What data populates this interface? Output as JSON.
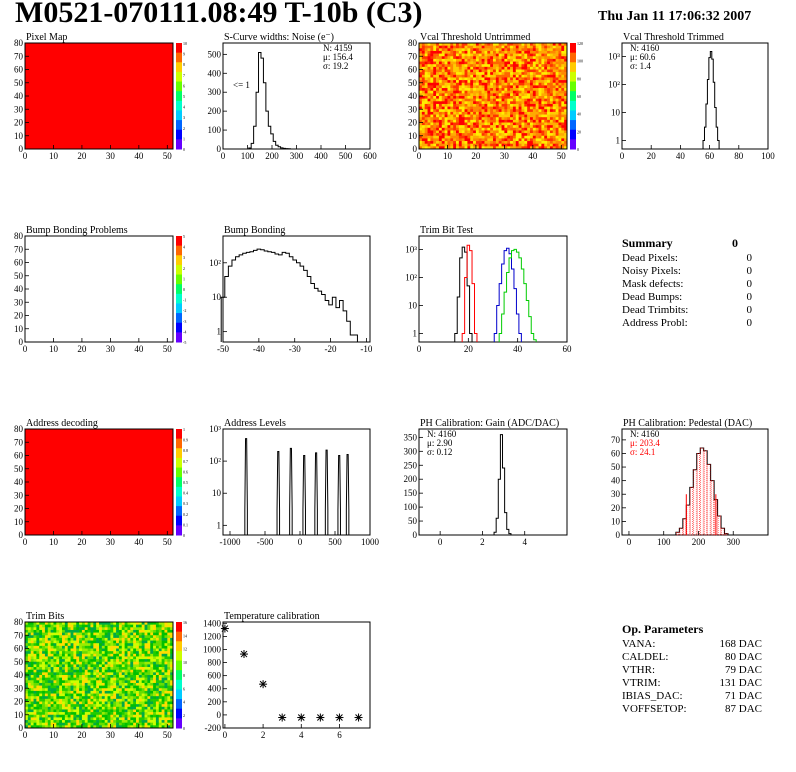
{
  "header": {
    "title": "M0521-070111.08:49 T-10b (C3)",
    "date": "Thu Jan 11 17:06:32 2007"
  },
  "colors": {
    "red": "#ff0000",
    "black": "#000000",
    "blue": "#0000cc",
    "green": "#00cc00",
    "stats_red": "#ff0000"
  },
  "summary": {
    "title": "Summary",
    "total": "0",
    "rows": [
      {
        "label": "Dead Pixels:",
        "value": "0"
      },
      {
        "label": "Noisy Pixels:",
        "value": "0"
      },
      {
        "label": "Mask defects:",
        "value": "0"
      },
      {
        "label": "Dead Bumps:",
        "value": "0"
      },
      {
        "label": "Dead Trimbits:",
        "value": "0"
      },
      {
        "label": "Address Probl:",
        "value": "0"
      }
    ]
  },
  "op_params": {
    "title": "Op. Parameters",
    "rows": [
      {
        "label": "VANA:",
        "value": "168 DAC"
      },
      {
        "label": "CALDEL:",
        "value": "80 DAC"
      },
      {
        "label": "VTHR:",
        "value": "79 DAC"
      },
      {
        "label": "VTRIM:",
        "value": "131 DAC"
      },
      {
        "label": "IBIAS_DAC:",
        "value": "71 DAC"
      },
      {
        "label": "VOFFSETOP:",
        "value": "87 DAC"
      }
    ]
  },
  "chart_data": [
    {
      "id": "pixel-map",
      "type": "heatmap",
      "title": "Pixel Map",
      "x_ticks": [
        "0",
        "10",
        "20",
        "30",
        "40",
        "50"
      ],
      "y_ticks": [
        "0",
        "10",
        "20",
        "30",
        "40",
        "50",
        "60",
        "70",
        "80"
      ],
      "xlim": [
        0,
        52
      ],
      "ylim": [
        0,
        80
      ],
      "fill": "uniform-red",
      "value": 10,
      "colorbar_ticks": [
        "0",
        "1",
        "2",
        "3",
        "4",
        "5",
        "6",
        "7",
        "8",
        "9",
        "10"
      ]
    },
    {
      "id": "scurve-noise",
      "type": "line",
      "title": "S-Curve widths: Noise (e⁻)",
      "x_ticks": [
        "0",
        "100",
        "200",
        "300",
        "400",
        "500",
        "600"
      ],
      "y_ticks": [
        "0",
        "100",
        "200",
        "300",
        "400",
        "500"
      ],
      "xlim": [
        0,
        600
      ],
      "ylim": [
        0,
        560
      ],
      "log_y": false,
      "stats": [
        "N: 4159",
        "μ: 156.4",
        "σ: 19.2"
      ],
      "annotation": "<= 1",
      "series": [
        {
          "color": "black",
          "x": [
            100,
            110,
            120,
            130,
            140,
            150,
            160,
            170,
            180,
            190,
            200,
            210,
            220,
            230,
            240,
            250,
            260,
            270,
            280
          ],
          "y": [
            0,
            5,
            30,
            120,
            300,
            510,
            480,
            350,
            200,
            120,
            80,
            40,
            20,
            12,
            6,
            3,
            2,
            1,
            0
          ]
        }
      ]
    },
    {
      "id": "vcal-untrimmed",
      "type": "heatmap",
      "title": "Vcal Threshold Untrimmed",
      "x_ticks": [
        "0",
        "10",
        "20",
        "30",
        "40",
        "50"
      ],
      "y_ticks": [
        "0",
        "10",
        "20",
        "30",
        "40",
        "50",
        "60",
        "70",
        "80"
      ],
      "xlim": [
        0,
        52
      ],
      "ylim": [
        0,
        80
      ],
      "fill": "noisy-orange",
      "colorbar_ticks": [
        "0",
        "20",
        "40",
        "60",
        "80",
        "100",
        "120"
      ]
    },
    {
      "id": "vcal-trimmed",
      "type": "line",
      "title": "Vcal Threshold Trimmed",
      "x_ticks": [
        "0",
        "20",
        "40",
        "60",
        "80",
        "100"
      ],
      "y_ticks": [
        "1",
        "10",
        "10²",
        "10³"
      ],
      "xlim": [
        0,
        100
      ],
      "ylim": [
        0.5,
        3000
      ],
      "log_y": true,
      "stats": [
        "N: 4160",
        "μ:  60.6",
        "σ:  1.4"
      ],
      "series": [
        {
          "color": "black",
          "x": [
            56,
            57,
            58,
            59,
            60,
            61,
            62,
            63,
            64,
            65,
            66
          ],
          "y": [
            1,
            3,
            20,
            150,
            900,
            1500,
            800,
            120,
            15,
            3,
            1
          ]
        }
      ]
    },
    {
      "id": "bump-problems",
      "type": "heatmap",
      "title": "Bump Bonding Problems",
      "x_ticks": [
        "0",
        "10",
        "20",
        "30",
        "40",
        "50"
      ],
      "y_ticks": [
        "0",
        "10",
        "20",
        "30",
        "40",
        "50",
        "60",
        "70",
        "80"
      ],
      "xlim": [
        0,
        52
      ],
      "ylim": [
        0,
        80
      ],
      "fill": "empty",
      "colorbar_ticks": [
        "-5",
        "-4",
        "-3",
        "-2",
        "-1",
        "0",
        "1",
        "2",
        "3",
        "4",
        "5"
      ]
    },
    {
      "id": "bump-bonding",
      "type": "line",
      "title": "Bump Bonding",
      "x_ticks": [
        "-50",
        "-40",
        "-30",
        "-20",
        "-10"
      ],
      "y_ticks": [
        "1",
        "10",
        "10²"
      ],
      "xlim": [
        -50,
        -9
      ],
      "ylim": [
        0.5,
        600
      ],
      "log_y": true,
      "series": [
        {
          "color": "black",
          "x": [
            -50,
            -49,
            -48,
            -47,
            -46,
            -45,
            -44,
            -43,
            -42,
            -41,
            -40,
            -39,
            -38,
            -37,
            -36,
            -35,
            -34,
            -33,
            -32,
            -31,
            -30,
            -29,
            -28,
            -27,
            -26,
            -25,
            -24,
            -23,
            -22,
            -21,
            -20,
            -19,
            -18,
            -17,
            -16,
            -15,
            -14,
            -13
          ],
          "y": [
            10,
            40,
            80,
            120,
            150,
            170,
            190,
            200,
            210,
            230,
            250,
            240,
            220,
            210,
            200,
            180,
            170,
            200,
            190,
            150,
            120,
            100,
            80,
            60,
            40,
            25,
            18,
            15,
            12,
            8,
            6,
            10,
            5,
            8,
            4,
            2,
            0.8,
            0.8
          ]
        }
      ]
    },
    {
      "id": "trim-bit-test",
      "type": "line",
      "title": "Trim Bit Test",
      "x_ticks": [
        "0",
        "20",
        "40",
        "60"
      ],
      "y_ticks": [
        "1",
        "10",
        "10²",
        "10³"
      ],
      "xlim": [
        0,
        60
      ],
      "ylim": [
        0.5,
        3000
      ],
      "log_y": true,
      "series": [
        {
          "color": "black",
          "x": [
            15,
            16,
            17,
            18,
            19,
            20,
            21
          ],
          "y": [
            1,
            20,
            500,
            1200,
            800,
            50,
            1
          ]
        },
        {
          "color": "red",
          "x": [
            18,
            19,
            20,
            21,
            22,
            23
          ],
          "y": [
            1,
            100,
            1400,
            900,
            60,
            1
          ]
        },
        {
          "color": "blue",
          "x": [
            31,
            32,
            33,
            34,
            35,
            36,
            37,
            38,
            39,
            40,
            41
          ],
          "y": [
            1,
            10,
            60,
            300,
            900,
            1100,
            700,
            200,
            40,
            5,
            1
          ]
        },
        {
          "color": "green",
          "x": [
            33,
            34,
            35,
            36,
            37,
            38,
            39,
            40,
            41,
            42,
            43,
            44,
            45,
            46,
            47
          ],
          "y": [
            1,
            5,
            30,
            150,
            500,
            900,
            1000,
            800,
            500,
            200,
            60,
            15,
            4,
            1,
            0.6
          ]
        }
      ]
    },
    {
      "id": "address-decoding",
      "type": "heatmap",
      "title": "Address decoding",
      "x_ticks": [
        "0",
        "10",
        "20",
        "30",
        "40",
        "50"
      ],
      "y_ticks": [
        "0",
        "10",
        "20",
        "30",
        "40",
        "50",
        "60",
        "70",
        "80"
      ],
      "xlim": [
        0,
        52
      ],
      "ylim": [
        0,
        80
      ],
      "fill": "uniform-red",
      "value": 1,
      "colorbar_ticks": [
        "0",
        "0.1",
        "0.2",
        "0.3",
        "0.4",
        "0.5",
        "0.6",
        "0.7",
        "0.8",
        "0.9",
        "1"
      ]
    },
    {
      "id": "address-levels",
      "type": "line",
      "title": "Address Levels",
      "x_ticks": [
        "-1000",
        "-500",
        "0",
        "500",
        "1000"
      ],
      "y_ticks": [
        "1",
        "10",
        "10²",
        "10³"
      ],
      "xlim": [
        -1100,
        1000
      ],
      "ylim": [
        0.5,
        1000
      ],
      "log_y": true,
      "series": [
        {
          "color": "black",
          "peaks": [
            -770,
            -310,
            -130,
            60,
            230,
            380,
            560,
            680
          ],
          "heights": [
            500,
            200,
            250,
            150,
            180,
            220,
            150,
            160
          ]
        }
      ]
    },
    {
      "id": "ph-gain",
      "type": "line",
      "title": "PH Calibration: Gain (ADC/DAC)",
      "x_ticks": [
        "0",
        "2",
        "4"
      ],
      "y_ticks": [
        "0",
        "50",
        "100",
        "150",
        "200",
        "250",
        "300",
        "350"
      ],
      "xlim": [
        -1,
        6
      ],
      "ylim": [
        0,
        380
      ],
      "log_y": false,
      "stats": [
        "N: 4160",
        "μ:  2.90",
        "σ:  0.12"
      ],
      "series": [
        {
          "color": "black",
          "x": [
            2.5,
            2.6,
            2.7,
            2.8,
            2.9,
            3.0,
            3.1,
            3.2,
            3.3,
            3.4
          ],
          "y": [
            0,
            10,
            60,
            200,
            360,
            240,
            80,
            20,
            5,
            0
          ]
        }
      ]
    },
    {
      "id": "ph-pedestal",
      "type": "line",
      "title": "PH Calibration: Pedestal (DAC)",
      "x_ticks": [
        "0",
        "100",
        "200",
        "300"
      ],
      "y_ticks": [
        "0",
        "10",
        "20",
        "30",
        "40",
        "50",
        "60",
        "70"
      ],
      "xlim": [
        -20,
        400
      ],
      "ylim": [
        0,
        78
      ],
      "log_y": false,
      "stats": [
        "N: 4160",
        "μ: 203.4",
        "σ: 24.1"
      ],
      "stats_colors": [
        "black",
        "red",
        "red"
      ],
      "series": [
        {
          "color": "black",
          "x": [
            140,
            150,
            160,
            170,
            180,
            190,
            200,
            210,
            220,
            230,
            240,
            250,
            260,
            270,
            280
          ],
          "y": [
            2,
            5,
            12,
            22,
            35,
            48,
            60,
            64,
            62,
            52,
            40,
            26,
            14,
            5,
            1
          ]
        }
      ]
    },
    {
      "id": "trim-bits",
      "type": "heatmap",
      "title": "Trim Bits",
      "x_ticks": [
        "0",
        "10",
        "20",
        "30",
        "40",
        "50"
      ],
      "y_ticks": [
        "0",
        "10",
        "20",
        "30",
        "40",
        "50",
        "60",
        "70",
        "80"
      ],
      "xlim": [
        0,
        52
      ],
      "ylim": [
        0,
        80
      ],
      "fill": "noisy-green",
      "colorbar_ticks": [
        "0",
        "2",
        "4",
        "6",
        "8",
        "10",
        "12",
        "14",
        "16"
      ]
    },
    {
      "id": "temperature-calibration",
      "type": "scatter",
      "title": "Temperature calibration",
      "x_ticks": [
        "0",
        "2",
        "4",
        "6"
      ],
      "y_ticks": [
        "-200",
        "0",
        "200",
        "400",
        "600",
        "800",
        "1000",
        "1200",
        "1400"
      ],
      "xlim": [
        -0.1,
        7.6
      ],
      "ylim": [
        -200,
        1420
      ],
      "log_y": false,
      "series": [
        {
          "color": "black",
          "x": [
            0,
            1,
            2,
            3,
            4,
            5,
            6,
            7
          ],
          "y": [
            1320,
            930,
            470,
            -40,
            -40,
            -40,
            -40,
            -40
          ]
        }
      ]
    }
  ]
}
